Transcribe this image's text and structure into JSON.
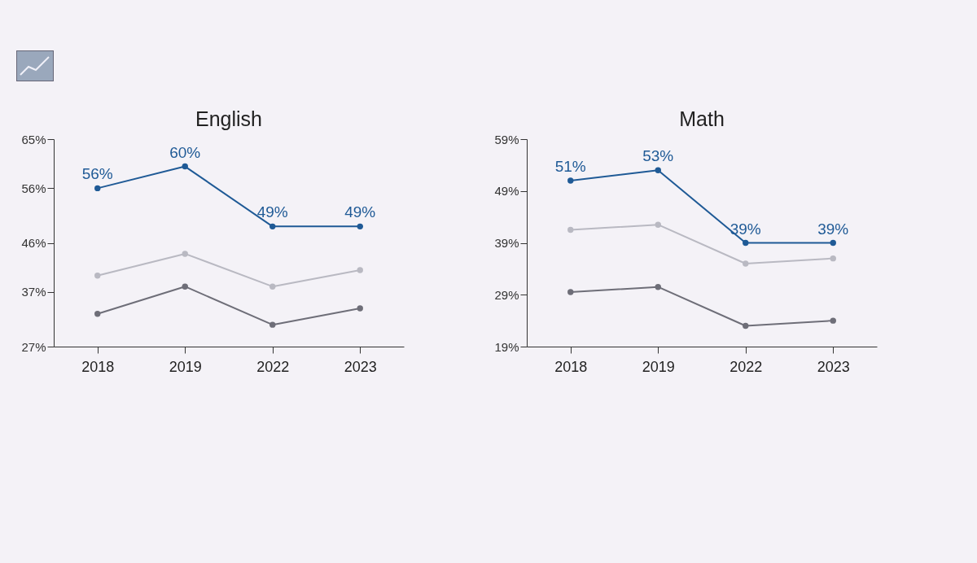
{
  "chart_data": [
    {
      "type": "line",
      "title": "English",
      "categories": [
        "2018",
        "2019",
        "2022",
        "2023"
      ],
      "ylim": [
        27,
        65
      ],
      "yticks": [
        {
          "value": 27,
          "label": "27%"
        },
        {
          "value": 37,
          "label": "37%"
        },
        {
          "value": 46,
          "label": "46%"
        },
        {
          "value": 56,
          "label": "56%"
        },
        {
          "value": 65,
          "label": "65%"
        }
      ],
      "marker": "circle",
      "series": [
        {
          "color": "#1f5a96",
          "values": [
            56,
            60,
            49,
            49
          ],
          "value_labels": [
            "56%",
            "60%",
            "49%",
            "49%"
          ]
        },
        {
          "color": "#b9b9c2",
          "values": [
            40,
            44,
            38,
            41
          ]
        },
        {
          "color": "#6e6e78",
          "values": [
            33,
            38,
            31,
            34
          ]
        }
      ]
    },
    {
      "type": "line",
      "title": "Math",
      "categories": [
        "2018",
        "2019",
        "2022",
        "2023"
      ],
      "ylim": [
        19,
        59
      ],
      "yticks": [
        {
          "value": 19,
          "label": "19%"
        },
        {
          "value": 29,
          "label": "29%"
        },
        {
          "value": 39,
          "label": "39%"
        },
        {
          "value": 49,
          "label": "49%"
        },
        {
          "value": 59,
          "label": "59%"
        }
      ],
      "marker": "circle",
      "series": [
        {
          "color": "#1f5a96",
          "values": [
            51,
            53,
            39,
            39
          ],
          "value_labels": [
            "51%",
            "53%",
            "39%",
            "39%"
          ]
        },
        {
          "color": "#b9b9c2",
          "values": [
            41.5,
            42.5,
            35,
            36
          ]
        },
        {
          "color": "#6e6e78",
          "values": [
            29.5,
            30.5,
            23,
            24
          ]
        }
      ]
    }
  ]
}
